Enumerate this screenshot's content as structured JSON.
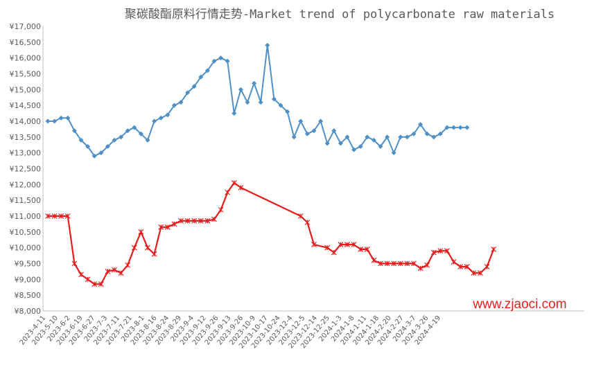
{
  "chart_data": {
    "type": "line",
    "title": "聚碳酸酯原料行情走势-Market trend of polycarbonate raw materials",
    "ylim": [
      8000,
      17000
    ],
    "ystep": 500,
    "y_tick_prefix": "¥",
    "grid": false,
    "legend": "none",
    "x_tick_labels": [
      "2023-4-11",
      "2023-5-10",
      "2023-6-2",
      "2023-6-19",
      "2023-6-27",
      "2023-7-3",
      "2023-7-11",
      "2023-7-21",
      "2023-8-1",
      "2023-8-16",
      "2023-8-24",
      "2023-8-29",
      "2023-9-4",
      "2023-9-12",
      "2023-9-26",
      "2023-9-13",
      "2023-9-26",
      "2023-10-9",
      "2023-10-17",
      "2023-10-24",
      "2023-12-4",
      "2023-12-5",
      "2023-12-14",
      "2023-12-25",
      "2024-1-3",
      "2024-1-8",
      "2024-1-11",
      "2024-1-18",
      "2024-2-20",
      "2024-2-27",
      "2024-3-7",
      "2024-3-26",
      "2024-4-19"
    ],
    "series": [
      {
        "color": "#4e8fc6",
        "marker": "diamond",
        "values": [
          14000,
          14000,
          14100,
          14100,
          13700,
          13400,
          13200,
          12900,
          13000,
          13200,
          13400,
          13500,
          13700,
          13800,
          13600,
          13400,
          14000,
          14100,
          14200,
          14500,
          14600,
          14900,
          15100,
          15400,
          15600,
          15900,
          16000,
          15900,
          14250,
          15000,
          14600,
          15200,
          14600,
          16400,
          14700,
          14500,
          14300,
          13500,
          14000,
          13600,
          13700,
          14000,
          13300,
          13700,
          13300,
          13500,
          13100,
          13200,
          13500,
          13400,
          13200,
          13500,
          13000,
          13500,
          13500,
          13600,
          13900,
          13600,
          13500,
          13600,
          13800,
          13800,
          13800,
          13800
        ]
      },
      {
        "color": "#e31c1c",
        "marker": "star",
        "points": [
          [
            0,
            11000
          ],
          [
            1,
            11000
          ],
          [
            2,
            11000
          ],
          [
            3,
            11000
          ],
          [
            4,
            9500
          ],
          [
            5,
            9150
          ],
          [
            6,
            9000
          ],
          [
            7,
            8850
          ],
          [
            8,
            8850
          ],
          [
            9,
            9250
          ],
          [
            10,
            9300
          ],
          [
            11,
            9200
          ],
          [
            12,
            9450
          ],
          [
            13,
            10000
          ],
          [
            14,
            10500
          ],
          [
            15,
            10000
          ],
          [
            16,
            9800
          ],
          [
            17,
            10650
          ],
          [
            18,
            10650
          ],
          [
            19,
            10750
          ],
          [
            20,
            10850
          ],
          [
            21,
            10850
          ],
          [
            22,
            10850
          ],
          [
            23,
            10850
          ],
          [
            24,
            10850
          ],
          [
            25,
            10900
          ],
          [
            26,
            11200
          ],
          [
            27,
            11750
          ],
          [
            28,
            12050
          ],
          [
            29,
            11900
          ],
          [
            38,
            11000
          ],
          [
            39,
            10800
          ],
          [
            40,
            10100
          ],
          [
            42,
            10000
          ],
          [
            43,
            9850
          ],
          [
            44,
            10100
          ],
          [
            45,
            10100
          ],
          [
            46,
            10100
          ],
          [
            47,
            9950
          ],
          [
            48,
            9950
          ],
          [
            49,
            9600
          ],
          [
            50,
            9500
          ],
          [
            51,
            9500
          ],
          [
            52,
            9500
          ],
          [
            53,
            9500
          ],
          [
            54,
            9500
          ],
          [
            55,
            9500
          ],
          [
            56,
            9350
          ],
          [
            57,
            9450
          ],
          [
            58,
            9850
          ],
          [
            59,
            9900
          ],
          [
            60,
            9900
          ],
          [
            61,
            9550
          ],
          [
            62,
            9400
          ],
          [
            63,
            9400
          ],
          [
            64,
            9200
          ],
          [
            65,
            9200
          ],
          [
            66,
            9400
          ],
          [
            67,
            9950
          ]
        ]
      }
    ]
  },
  "watermark": "www.zjaoci.com"
}
